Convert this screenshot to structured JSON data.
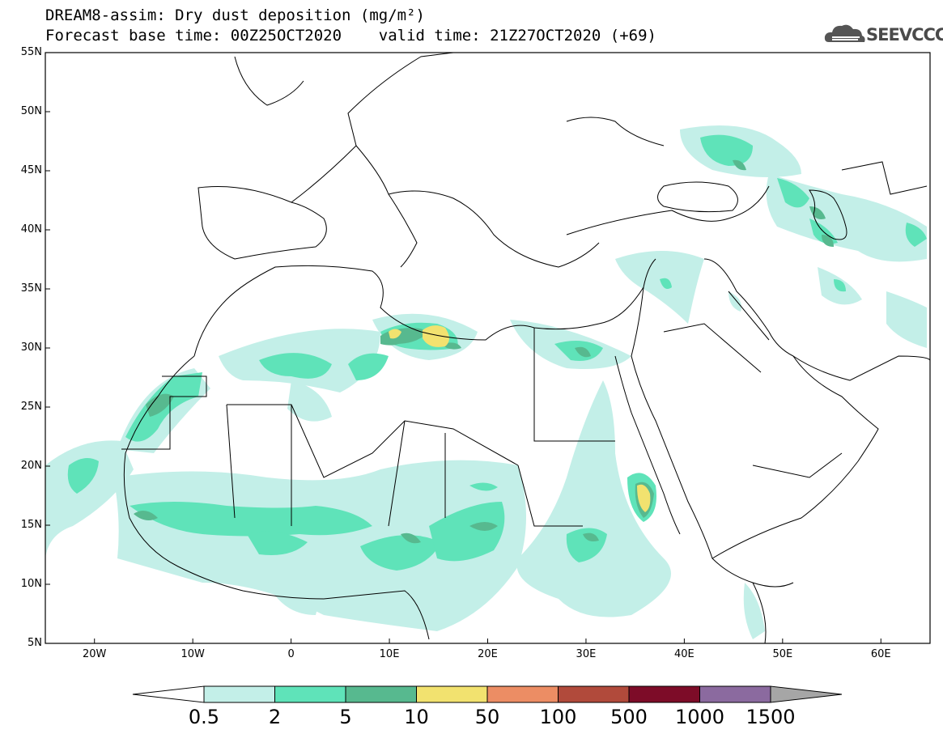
{
  "header": {
    "title_line1": "DREAM8-assim: Dry dust deposition (mg/m²)",
    "title_line2": "Forecast base time: 00Z25OCT2020    valid time: 21Z27OCT2020 (+69)"
  },
  "logo": {
    "text": "SEEVCCC",
    "icon": "cloud-icon"
  },
  "map": {
    "projection": "lat-lon",
    "lon_range": [
      -25,
      65
    ],
    "lat_range": [
      5,
      55
    ],
    "lat_ticks": [
      {
        "value": 55,
        "label": "55N"
      },
      {
        "value": 50,
        "label": "50N"
      },
      {
        "value": 45,
        "label": "45N"
      },
      {
        "value": 40,
        "label": "40N"
      },
      {
        "value": 35,
        "label": "35N"
      },
      {
        "value": 30,
        "label": "30N"
      },
      {
        "value": 25,
        "label": "25N"
      },
      {
        "value": 20,
        "label": "20N"
      },
      {
        "value": 15,
        "label": "15N"
      },
      {
        "value": 10,
        "label": "10N"
      },
      {
        "value": 5,
        "label": "5N"
      }
    ],
    "lon_ticks": [
      {
        "value": -20,
        "label": "20W"
      },
      {
        "value": -10,
        "label": "10W"
      },
      {
        "value": 0,
        "label": "0"
      },
      {
        "value": 10,
        "label": "10E"
      },
      {
        "value": 20,
        "label": "20E"
      },
      {
        "value": 30,
        "label": "30E"
      },
      {
        "value": 40,
        "label": "40E"
      },
      {
        "value": 50,
        "label": "50E"
      },
      {
        "value": 60,
        "label": "60E"
      }
    ]
  },
  "colorbar": {
    "levels": [
      "0.5",
      "2",
      "5",
      "10",
      "50",
      "100",
      "500",
      "1000",
      "1500"
    ],
    "colors": [
      "#c3efe8",
      "#5fe3b9",
      "#57b98f",
      "#f2e26f",
      "#ec8d64",
      "#b14a3b",
      "#7d0c28",
      "#8b6a9f"
    ],
    "under_color": "#ffffff",
    "over_color": "#a6a6a6"
  }
}
